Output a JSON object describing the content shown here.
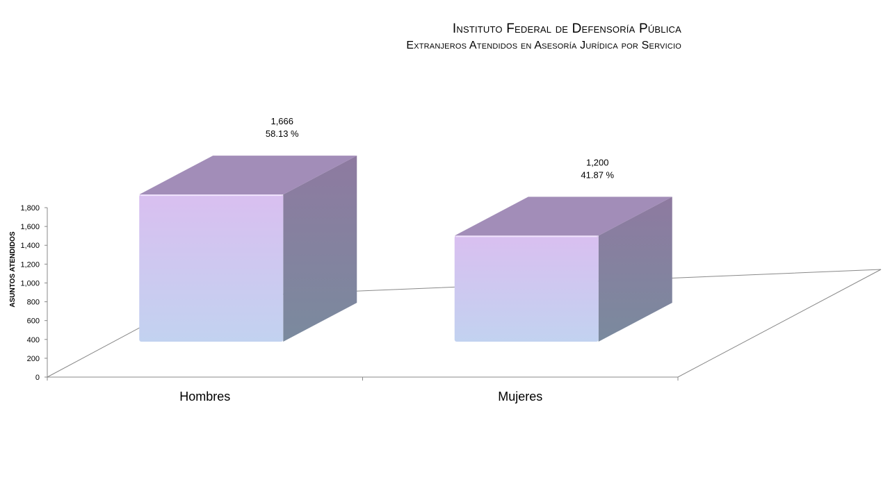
{
  "header": {
    "title": "Instituto Federal de Defensoría Pública",
    "subtitle": "Extranjeros Atendidos en Asesoría Jurídica por Servicio"
  },
  "chart_data": {
    "type": "bar",
    "title": "Instituto Federal de Defensoría Pública",
    "subtitle": "Extranjeros Atendidos en Asesoría Jurídica por Servicio",
    "xlabel": "",
    "ylabel": "ASUNTOS ATENDIDOS",
    "categories": [
      "Hombres",
      "Mujeres"
    ],
    "values": [
      1666,
      1200
    ],
    "value_labels": [
      "1,666",
      "1,200"
    ],
    "percent_labels": [
      "58.13 %",
      "41.87 %"
    ],
    "ylim": [
      0,
      1800
    ],
    "y_ticks": [
      "0",
      "200",
      "400",
      "600",
      "800",
      "1,000",
      "1,200",
      "1,400",
      "1,600",
      "1,800"
    ],
    "grid": false,
    "legend": "none",
    "style": "3d-box",
    "colors": {
      "front_top": "#d9bff0",
      "front_bottom": "#c2d2f0",
      "side_top": "#8e7aa0",
      "side_bottom": "#7a8a9e",
      "top_face": "#a28db8",
      "axis": "#888888"
    }
  }
}
